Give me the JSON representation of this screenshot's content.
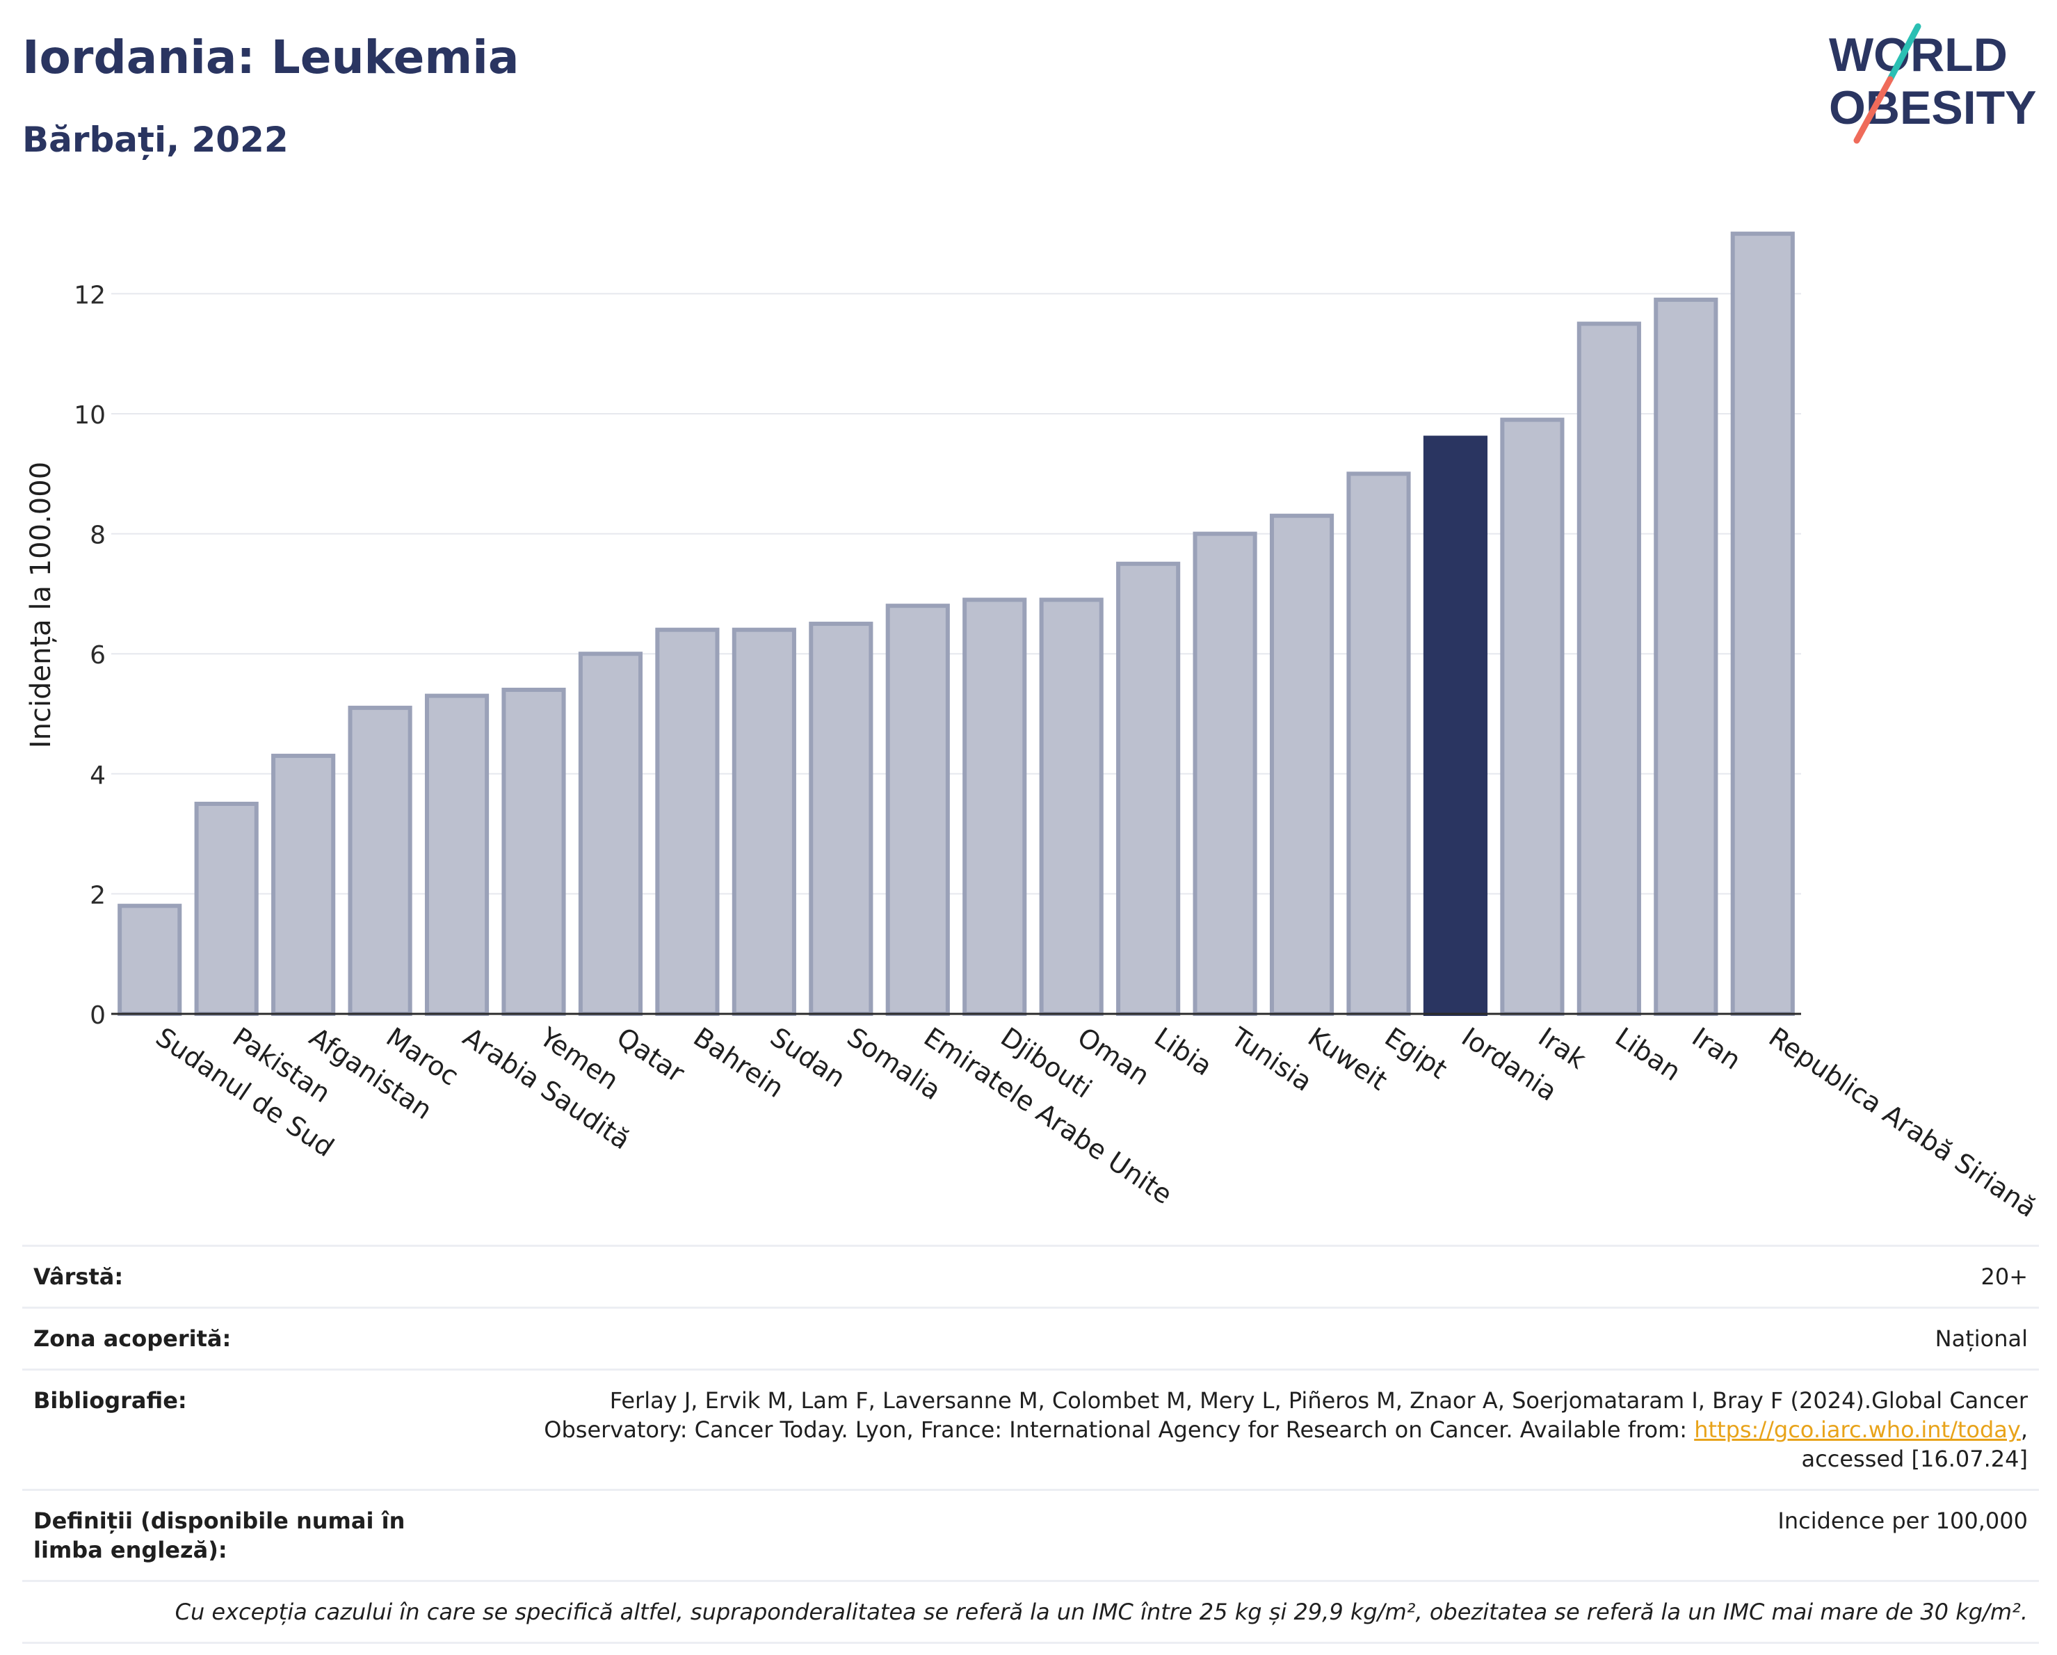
{
  "header": {
    "title": "Iordania: Leukemia",
    "subtitle": "Bărbați, 2022"
  },
  "logo": {
    "line1": "WORLD",
    "line2": "OBESITY"
  },
  "colors": {
    "bar": "#bcc0cf",
    "bar_stroke": "#9aa1b8",
    "highlight": "#2a3561",
    "grid": "#e6e8ee",
    "axis": "#2b2b2b"
  },
  "chart_data": {
    "type": "bar",
    "ylabel": "Incidența la 100.000",
    "xlabel": "",
    "ylim": [
      0,
      13.5
    ],
    "yticks": [
      0,
      2,
      4,
      6,
      8,
      10,
      12
    ],
    "grid": true,
    "highlight": "Iordania",
    "categories": [
      "Sudanul de Sud",
      "Pakistan",
      "Afganistan",
      "Maroc",
      "Arabia Saudită",
      "Yemen",
      "Qatar",
      "Bahrein",
      "Sudan",
      "Somalia",
      "Emiratele Arabe Unite",
      "Djibouti",
      "Oman",
      "Libia",
      "Tunisia",
      "Kuweit",
      "Egipt",
      "Iordania",
      "Irak",
      "Liban",
      "Iran",
      "Republica Arabă Siriană"
    ],
    "values": [
      1.8,
      3.5,
      4.3,
      5.1,
      5.3,
      5.4,
      6.0,
      6.4,
      6.4,
      6.5,
      6.8,
      6.9,
      6.9,
      7.5,
      8.0,
      8.3,
      9.0,
      9.6,
      9.9,
      11.5,
      11.9,
      13.0
    ]
  },
  "meta": {
    "age_label": "Vârstă:",
    "age_value": "20+",
    "area_label": "Zona acoperită:",
    "area_value": "Național",
    "bib_label": "Bibliografie:",
    "bib_text": "Ferlay J, Ervik M, Lam F, Laversanne M, Colombet M, Mery L, Piñeros M, Znaor A, Soerjomataram I, Bray F (2024).Global Cancer Observatory: Cancer Today. Lyon, France: International Agency for Research on Cancer. Available from: ",
    "bib_link": "https://gco.iarc.who.int/today",
    "bib_tail": ", accessed [16.07.24]",
    "def_label": "Definiții (disponibile numai în limba engleză):",
    "def_value": "Incidence per 100,000",
    "note": "Cu excepția cazului în care se specifică altfel, supraponderalitatea se referă la un IMC între 25 kg și 29,9 kg/m², obezitatea se referă la un IMC mai mare de 30 kg/m²."
  }
}
